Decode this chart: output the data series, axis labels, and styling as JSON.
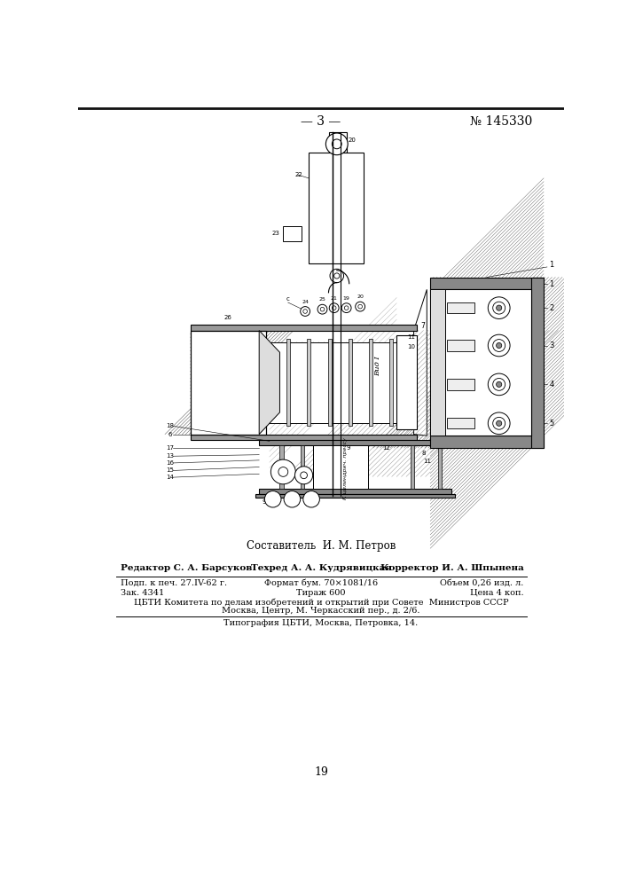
{
  "page_number_top": "— 3 —",
  "patent_number": "№ 145330",
  "composer_line": "Составитель  И. М. Петров",
  "editor_bold": "Редактор С. А. Барсуков",
  "techred_bold": "Техред А. А. Кудрявицкая",
  "corrector_bold": "Корректор И. А. Шпынена",
  "row1_col1": "Подп. к печ. 27.IV-62 г.",
  "row1_col2": "Формат бум. 70×1081/16",
  "row1_col3": "Объем 0,26 изд. л.",
  "row2_col1": "Зак. 4341",
  "row2_col2": "Тираж 600",
  "row2_col3": "Цена 4 коп.",
  "footer_line1": "ЦБТИ Комитета по делам изобретений и открытий при Совете  Министров СССР",
  "footer_line2": "Москва, Центр, М. Черкасский пер., д. 2/6.",
  "footer_line3": "Типография ЦБТИ, Москва, Петровка, 14.",
  "page_number_bottom": "19",
  "bg_color": "#ffffff",
  "text_color": "#000000",
  "line_color": "#000000"
}
